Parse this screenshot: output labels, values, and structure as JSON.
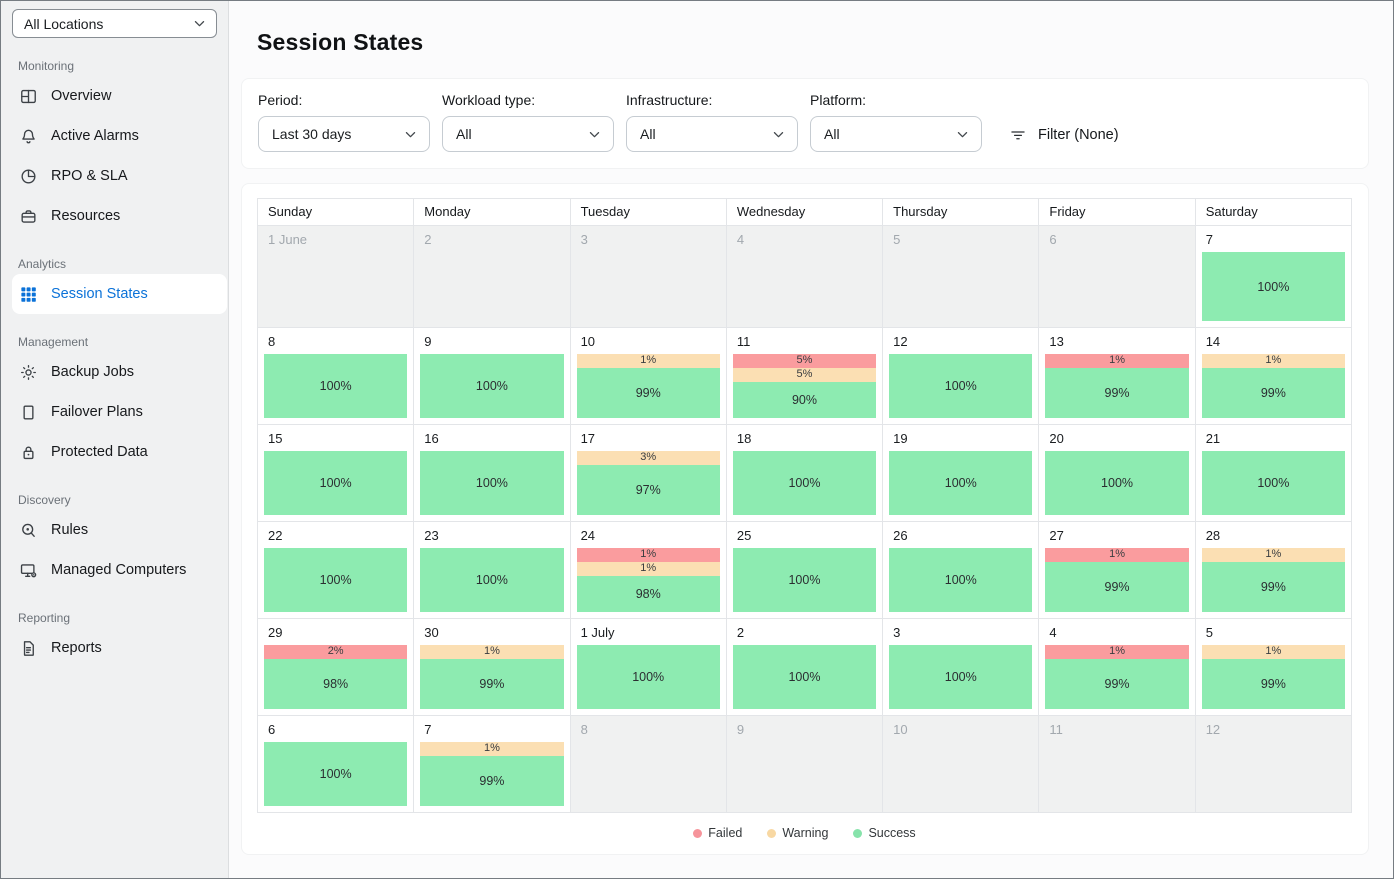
{
  "app": {
    "title": "Session States"
  },
  "colors": {
    "failed": "#FA9C9E",
    "warning": "#FBDFB3",
    "success": "#8DEBB1",
    "accent_blue": "#0B72D8"
  },
  "sidebar": {
    "location_selector": {
      "value": "All Locations"
    },
    "sections": [
      {
        "label": "Monitoring",
        "items": [
          {
            "label": "Overview",
            "icon": "dashboard-icon",
            "active": false
          },
          {
            "label": "Active Alarms",
            "icon": "bell-icon",
            "active": false
          },
          {
            "label": "RPO & SLA",
            "icon": "pie-chart-icon",
            "active": false
          },
          {
            "label": "Resources",
            "icon": "briefcase-icon",
            "active": false
          }
        ]
      },
      {
        "label": "Analytics",
        "items": [
          {
            "label": "Session States",
            "icon": "grid-icon",
            "active": true
          }
        ]
      },
      {
        "label": "Management",
        "items": [
          {
            "label": "Backup Jobs",
            "icon": "gear-icon",
            "active": false
          },
          {
            "label": "Failover Plans",
            "icon": "document-icon",
            "active": false
          },
          {
            "label": "Protected Data",
            "icon": "lock-icon",
            "active": false
          }
        ]
      },
      {
        "label": "Discovery",
        "items": [
          {
            "label": "Rules",
            "icon": "magnifier-icon",
            "active": false
          },
          {
            "label": "Managed Computers",
            "icon": "computer-gear-icon",
            "active": false
          }
        ]
      },
      {
        "label": "Reporting",
        "items": [
          {
            "label": "Reports",
            "icon": "report-icon",
            "active": false
          }
        ]
      }
    ]
  },
  "filters": {
    "fields": [
      {
        "label": "Period:",
        "value": "Last 30 days"
      },
      {
        "label": "Workload type:",
        "value": "All"
      },
      {
        "label": "Infrastructure:",
        "value": "All"
      },
      {
        "label": "Platform:",
        "value": "All"
      }
    ],
    "filter_button_label": "Filter (None)"
  },
  "calendar": {
    "day_headers": [
      "Sunday",
      "Monday",
      "Tuesday",
      "Wednesday",
      "Thursday",
      "Friday",
      "Saturday"
    ],
    "weeks": [
      [
        {
          "day": "1 June",
          "out": true
        },
        {
          "day": "2",
          "out": true
        },
        {
          "day": "3",
          "out": true
        },
        {
          "day": "4",
          "out": true
        },
        {
          "day": "5",
          "out": true
        },
        {
          "day": "6",
          "out": true
        },
        {
          "day": "7",
          "segments": [
            {
              "type": "success",
              "pct": "100%"
            }
          ]
        }
      ],
      [
        {
          "day": "8",
          "segments": [
            {
              "type": "success",
              "pct": "100%"
            }
          ]
        },
        {
          "day": "9",
          "segments": [
            {
              "type": "success",
              "pct": "100%"
            }
          ]
        },
        {
          "day": "10",
          "segments": [
            {
              "type": "warning",
              "pct": "1%"
            },
            {
              "type": "success",
              "pct": "99%"
            }
          ]
        },
        {
          "day": "11",
          "segments": [
            {
              "type": "failed",
              "pct": "5%"
            },
            {
              "type": "warning",
              "pct": "5%"
            },
            {
              "type": "success",
              "pct": "90%"
            }
          ]
        },
        {
          "day": "12",
          "segments": [
            {
              "type": "success",
              "pct": "100%"
            }
          ]
        },
        {
          "day": "13",
          "segments": [
            {
              "type": "failed",
              "pct": "1%"
            },
            {
              "type": "success",
              "pct": "99%"
            }
          ]
        },
        {
          "day": "14",
          "segments": [
            {
              "type": "warning",
              "pct": "1%"
            },
            {
              "type": "success",
              "pct": "99%"
            }
          ]
        }
      ],
      [
        {
          "day": "15",
          "segments": [
            {
              "type": "success",
              "pct": "100%"
            }
          ]
        },
        {
          "day": "16",
          "segments": [
            {
              "type": "success",
              "pct": "100%"
            }
          ]
        },
        {
          "day": "17",
          "segments": [
            {
              "type": "warning",
              "pct": "3%"
            },
            {
              "type": "success",
              "pct": "97%"
            }
          ]
        },
        {
          "day": "18",
          "segments": [
            {
              "type": "success",
              "pct": "100%"
            }
          ]
        },
        {
          "day": "19",
          "segments": [
            {
              "type": "success",
              "pct": "100%"
            }
          ]
        },
        {
          "day": "20",
          "segments": [
            {
              "type": "success",
              "pct": "100%"
            }
          ]
        },
        {
          "day": "21",
          "segments": [
            {
              "type": "success",
              "pct": "100%"
            }
          ]
        }
      ],
      [
        {
          "day": "22",
          "segments": [
            {
              "type": "success",
              "pct": "100%"
            }
          ]
        },
        {
          "day": "23",
          "segments": [
            {
              "type": "success",
              "pct": "100%"
            }
          ]
        },
        {
          "day": "24",
          "segments": [
            {
              "type": "failed",
              "pct": "1%"
            },
            {
              "type": "warning",
              "pct": "1%"
            },
            {
              "type": "success",
              "pct": "98%"
            }
          ]
        },
        {
          "day": "25",
          "segments": [
            {
              "type": "success",
              "pct": "100%"
            }
          ]
        },
        {
          "day": "26",
          "segments": [
            {
              "type": "success",
              "pct": "100%"
            }
          ]
        },
        {
          "day": "27",
          "segments": [
            {
              "type": "failed",
              "pct": "1%"
            },
            {
              "type": "success",
              "pct": "99%"
            }
          ]
        },
        {
          "day": "28",
          "segments": [
            {
              "type": "warning",
              "pct": "1%"
            },
            {
              "type": "success",
              "pct": "99%"
            }
          ]
        }
      ],
      [
        {
          "day": "29",
          "segments": [
            {
              "type": "failed",
              "pct": "2%"
            },
            {
              "type": "success",
              "pct": "98%"
            }
          ]
        },
        {
          "day": "30",
          "segments": [
            {
              "type": "warning",
              "pct": "1%"
            },
            {
              "type": "success",
              "pct": "99%"
            }
          ]
        },
        {
          "day": "1 July",
          "segments": [
            {
              "type": "success",
              "pct": "100%"
            }
          ]
        },
        {
          "day": "2",
          "segments": [
            {
              "type": "success",
              "pct": "100%"
            }
          ]
        },
        {
          "day": "3",
          "segments": [
            {
              "type": "success",
              "pct": "100%"
            }
          ]
        },
        {
          "day": "4",
          "segments": [
            {
              "type": "failed",
              "pct": "1%"
            },
            {
              "type": "success",
              "pct": "99%"
            }
          ]
        },
        {
          "day": "5",
          "segments": [
            {
              "type": "warning",
              "pct": "1%"
            },
            {
              "type": "success",
              "pct": "99%"
            }
          ]
        }
      ],
      [
        {
          "day": "6",
          "segments": [
            {
              "type": "success",
              "pct": "100%"
            }
          ]
        },
        {
          "day": "7",
          "segments": [
            {
              "type": "warning",
              "pct": "1%"
            },
            {
              "type": "success",
              "pct": "99%"
            }
          ]
        },
        {
          "day": "8",
          "out": true
        },
        {
          "day": "9",
          "out": true
        },
        {
          "day": "10",
          "out": true
        },
        {
          "day": "11",
          "out": true
        },
        {
          "day": "12",
          "out": true
        }
      ]
    ],
    "legend": [
      {
        "label": "Failed",
        "color": "#F6949B",
        "type": "failed"
      },
      {
        "label": "Warning",
        "color": "#F8D8A3",
        "type": "warning"
      },
      {
        "label": "Success",
        "color": "#87E3AB",
        "type": "success"
      }
    ]
  }
}
